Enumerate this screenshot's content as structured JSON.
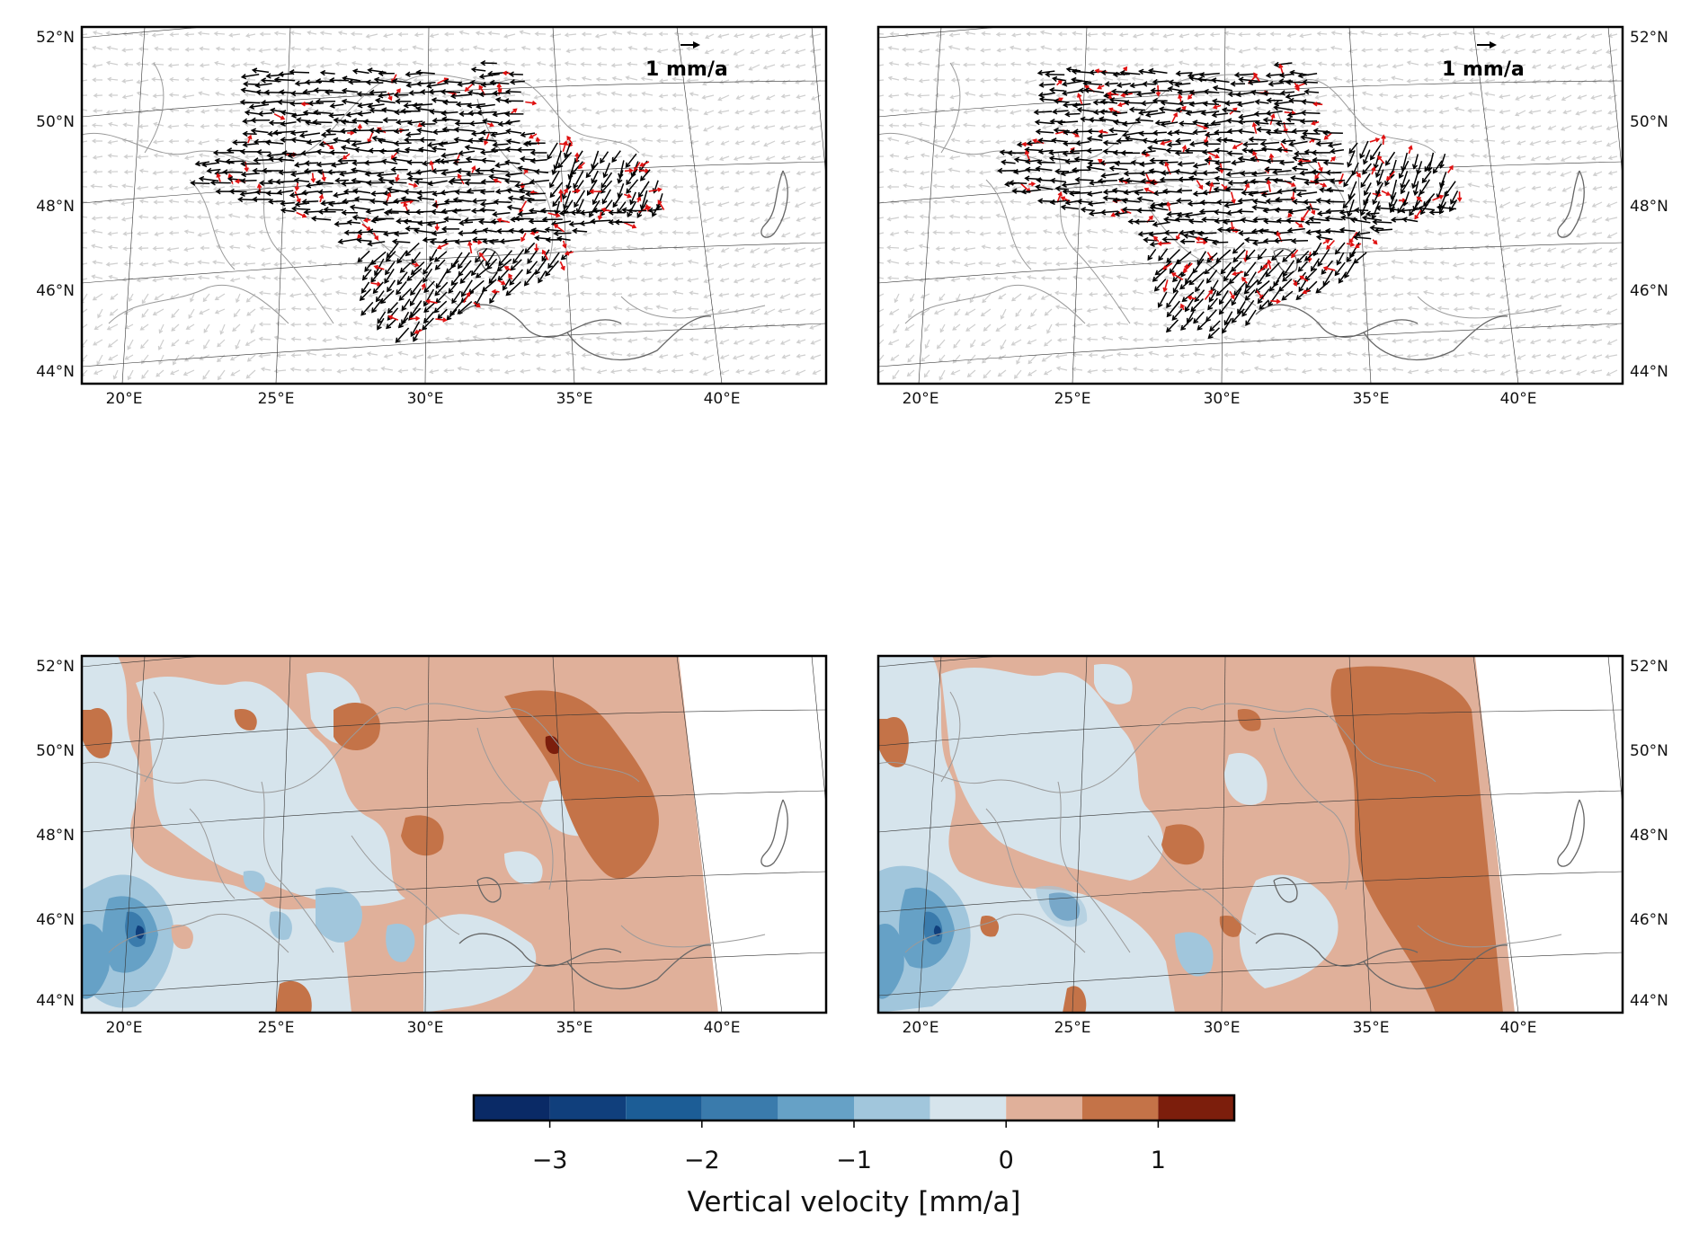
{
  "figure": {
    "panels": [
      {
        "id": "a",
        "kind": "horizontal-velocity",
        "scale_label": "1 mm/a"
      },
      {
        "id": "b",
        "kind": "horizontal-velocity",
        "scale_label": "1 mm/a"
      },
      {
        "id": "c",
        "kind": "vertical-velocity"
      },
      {
        "id": "d",
        "kind": "vertical-velocity"
      }
    ],
    "lat_ticks": [
      "52°N",
      "50°N",
      "48°N",
      "46°N",
      "44°N"
    ],
    "lon_ticks": [
      "20°E",
      "25°E",
      "30°E",
      "35°E",
      "40°E"
    ],
    "colors": {
      "background_vectors": "#cfcfcf",
      "station_vectors": "#000000",
      "residual_vectors": "#e01010",
      "borders": "#9a9a9a",
      "coast": "#666666"
    }
  },
  "colorbar": {
    "title": "Vertical velocity [mm/a]",
    "tick_labels": [
      "−3",
      "−2",
      "−1",
      "0",
      "1"
    ],
    "tick_values": [
      -3,
      -2,
      -1,
      0,
      1
    ],
    "range": [
      -3.5,
      1.5
    ],
    "levels": [
      -3.5,
      -3,
      -2.5,
      -2,
      -1.5,
      -1,
      -0.5,
      0,
      0.5,
      1,
      1.5
    ],
    "colors": [
      "#0a2a66",
      "#103f7c",
      "#1c5d96",
      "#3a7bac",
      "#66a1c6",
      "#a1c6dc",
      "#d6e4ec",
      "#e0b09a",
      "#c47348",
      "#7c1e0c"
    ]
  }
}
